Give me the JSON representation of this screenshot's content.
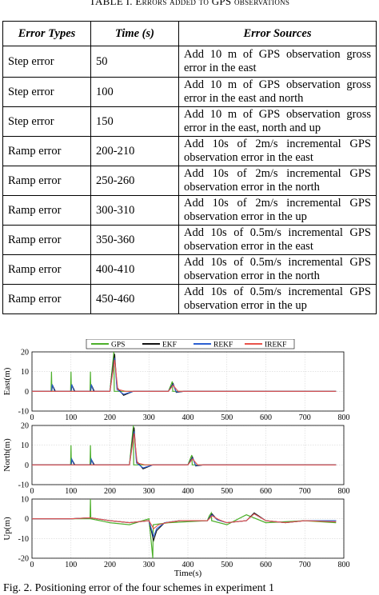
{
  "table": {
    "caption": "TABLE I.  Errors added to GPS observations",
    "headers": [
      "Error Types",
      "Time (s)",
      "Error Sources"
    ],
    "rows": [
      {
        "type": "Step error",
        "time": "50",
        "source": "Add 10 m of GPS observation gross error in the east"
      },
      {
        "type": "Step error",
        "time": "100",
        "source": "Add 10 m of GPS observation gross error in the east and north"
      },
      {
        "type": "Step error",
        "time": "150",
        "source": "Add 10 m of GPS observation gross error in the east, north and up"
      },
      {
        "type": "Ramp error",
        "time": "200-210",
        "source": "Add 10s of 2m/s incremental GPS observation error in the east"
      },
      {
        "type": "Ramp error",
        "time": "250-260",
        "source": "Add 10s of 2m/s incremental GPS observation error in the north"
      },
      {
        "type": "Ramp error",
        "time": "300-310",
        "source": "Add 10s of 2m/s incremental GPS observation error in the up"
      },
      {
        "type": "Ramp error",
        "time": "350-360",
        "source": "Add 10s of 0.5m/s incremental GPS observation error in the east"
      },
      {
        "type": "Ramp error",
        "time": "400-410",
        "source": "Add 10s of 0.5m/s incremental GPS observation error in the north"
      },
      {
        "type": "Ramp error",
        "time": "450-460",
        "source": "Add 10s of 0.5m/s incremental GPS observation error in the up"
      }
    ]
  },
  "figure": {
    "caption": "Fig. 2. Positioning error of the four schemes in experiment 1",
    "xlabel": "Time(s)"
  },
  "colors": {
    "GPS": "#4caf2a",
    "EKF": "#111111",
    "REKF": "#2b5fd1",
    "IREKF": "#e8524a"
  },
  "chart_data": [
    {
      "type": "line",
      "ylabel": "East(m)",
      "xlim": [
        0,
        800
      ],
      "ylim": [
        -10,
        20
      ],
      "xticks": [
        0,
        100,
        200,
        300,
        400,
        500,
        600,
        700,
        800
      ],
      "yticks": [
        -10,
        0,
        10,
        20
      ],
      "legend": [
        "GPS",
        "EKF",
        "REKF",
        "IREKF"
      ],
      "grid": true,
      "series": [
        {
          "name": "GPS",
          "x": [
            0,
            49,
            50,
            51,
            99,
            100,
            101,
            149,
            150,
            151,
            200,
            205,
            210,
            211,
            250,
            350,
            355,
            360,
            361,
            400,
            500,
            600,
            700,
            780
          ],
          "y": [
            0,
            0,
            10,
            0,
            0,
            10,
            0,
            0,
            10,
            0,
            0,
            10,
            20,
            0,
            0,
            0,
            2.5,
            5,
            0,
            0,
            0,
            0,
            0,
            0
          ]
        },
        {
          "name": "EKF",
          "x": [
            0,
            50,
            53,
            60,
            100,
            103,
            110,
            150,
            153,
            160,
            200,
            212,
            218,
            235,
            260,
            350,
            362,
            370,
            390,
            500,
            700,
            780
          ],
          "y": [
            0,
            0,
            3,
            0,
            0,
            3,
            0,
            0,
            3,
            0,
            0,
            19,
            2,
            -2,
            0,
            0,
            4,
            -0.5,
            0,
            0,
            0,
            0
          ]
        },
        {
          "name": "REKF",
          "x": [
            0,
            50,
            52,
            58,
            100,
            102,
            108,
            150,
            152,
            158,
            200,
            212,
            218,
            235,
            260,
            350,
            362,
            370,
            390,
            500,
            700,
            780
          ],
          "y": [
            0,
            0,
            3.5,
            0,
            0,
            3.5,
            0,
            0,
            3.5,
            0,
            0,
            17,
            1,
            -1.5,
            0,
            0,
            3.5,
            -0.3,
            0,
            0,
            0,
            0
          ]
        },
        {
          "name": "IREKF",
          "x": [
            0,
            50,
            60,
            100,
            150,
            200,
            212,
            220,
            240,
            350,
            362,
            375,
            500,
            700,
            780
          ],
          "y": [
            0,
            0,
            0,
            0,
            0,
            0,
            16,
            1,
            0,
            0,
            3,
            0,
            0,
            0,
            0
          ]
        }
      ]
    },
    {
      "type": "line",
      "ylabel": "North(m)",
      "xlim": [
        0,
        800
      ],
      "ylim": [
        -10,
        20
      ],
      "xticks": [
        0,
        100,
        200,
        300,
        400,
        500,
        600,
        700,
        800
      ],
      "yticks": [
        -10,
        0,
        10,
        20
      ],
      "grid": true,
      "series": [
        {
          "name": "GPS",
          "x": [
            0,
            99,
            100,
            101,
            149,
            150,
            151,
            250,
            255,
            260,
            261,
            400,
            405,
            410,
            411,
            500,
            600,
            700,
            780
          ],
          "y": [
            0,
            0,
            10,
            0,
            0,
            10,
            0,
            0,
            10,
            20,
            0,
            0,
            2.5,
            5,
            0,
            0,
            0,
            0,
            0
          ]
        },
        {
          "name": "EKF",
          "x": [
            0,
            100,
            103,
            110,
            150,
            153,
            160,
            250,
            262,
            268,
            285,
            310,
            400,
            412,
            420,
            440,
            600,
            780
          ],
          "y": [
            0,
            0,
            2.5,
            0,
            0,
            2.5,
            0,
            0,
            19,
            2,
            -2,
            0,
            0,
            4,
            -0.5,
            0,
            0,
            0
          ]
        },
        {
          "name": "REKF",
          "x": [
            0,
            100,
            102,
            108,
            150,
            152,
            158,
            250,
            262,
            268,
            285,
            310,
            400,
            412,
            420,
            440,
            600,
            780
          ],
          "y": [
            0,
            0,
            3,
            0,
            0,
            3,
            0,
            0,
            17,
            1,
            -1.5,
            0,
            0,
            3.5,
            -0.3,
            0,
            0,
            0
          ]
        },
        {
          "name": "IREKF",
          "x": [
            0,
            250,
            262,
            270,
            290,
            400,
            412,
            425,
            600,
            780
          ],
          "y": [
            0,
            0,
            16,
            1,
            0,
            0,
            3,
            0,
            0,
            0
          ]
        }
      ]
    },
    {
      "type": "line",
      "ylabel": "Up(m)",
      "xlim": [
        0,
        800
      ],
      "ylim": [
        -20,
        10
      ],
      "xticks": [
        0,
        100,
        200,
        300,
        400,
        500,
        600,
        700,
        800
      ],
      "yticks": [
        -20,
        -10,
        0,
        10
      ],
      "grid": true,
      "series": [
        {
          "name": "GPS",
          "x": [
            0,
            100,
            149,
            150,
            151,
            200,
            250,
            300,
            305,
            310,
            311,
            350,
            450,
            455,
            460,
            461,
            500,
            550,
            600,
            700,
            780
          ],
          "y": [
            0,
            0,
            0,
            10,
            0,
            -2,
            -3,
            0,
            -10,
            -20,
            -3,
            -2,
            -1,
            1.5,
            3,
            -1,
            -3,
            2,
            -2,
            -1,
            -2
          ]
        },
        {
          "name": "EKF",
          "x": [
            0,
            100,
            150,
            200,
            250,
            300,
            312,
            320,
            340,
            380,
            450,
            462,
            475,
            500,
            550,
            570,
            600,
            650,
            700,
            780
          ],
          "y": [
            0,
            0,
            0.5,
            -1,
            -2,
            -1,
            -11,
            -6,
            -2,
            -1,
            -1,
            2.5,
            -0.5,
            -2,
            -1,
            3,
            -1,
            -2,
            -1,
            -1
          ]
        },
        {
          "name": "REKF",
          "x": [
            0,
            100,
            150,
            200,
            250,
            300,
            312,
            320,
            340,
            380,
            450,
            462,
            475,
            500,
            550,
            570,
            600,
            650,
            700,
            780
          ],
          "y": [
            0,
            0,
            0.5,
            -1,
            -2,
            -1,
            -9,
            -5,
            -2,
            -1,
            -1,
            2,
            -0.5,
            -2,
            -1,
            2.5,
            -1,
            -2,
            -1,
            -1
          ]
        },
        {
          "name": "IREKF",
          "x": [
            0,
            100,
            150,
            200,
            250,
            300,
            312,
            325,
            345,
            380,
            450,
            462,
            480,
            500,
            550,
            570,
            600,
            650,
            700,
            780
          ],
          "y": [
            0,
            0,
            0.5,
            -1,
            -2,
            -1,
            -5,
            -3,
            -2,
            -1,
            -1,
            1.5,
            -0.5,
            -2,
            -1,
            2.5,
            -1,
            -2,
            -1,
            -1.5
          ]
        }
      ]
    }
  ]
}
